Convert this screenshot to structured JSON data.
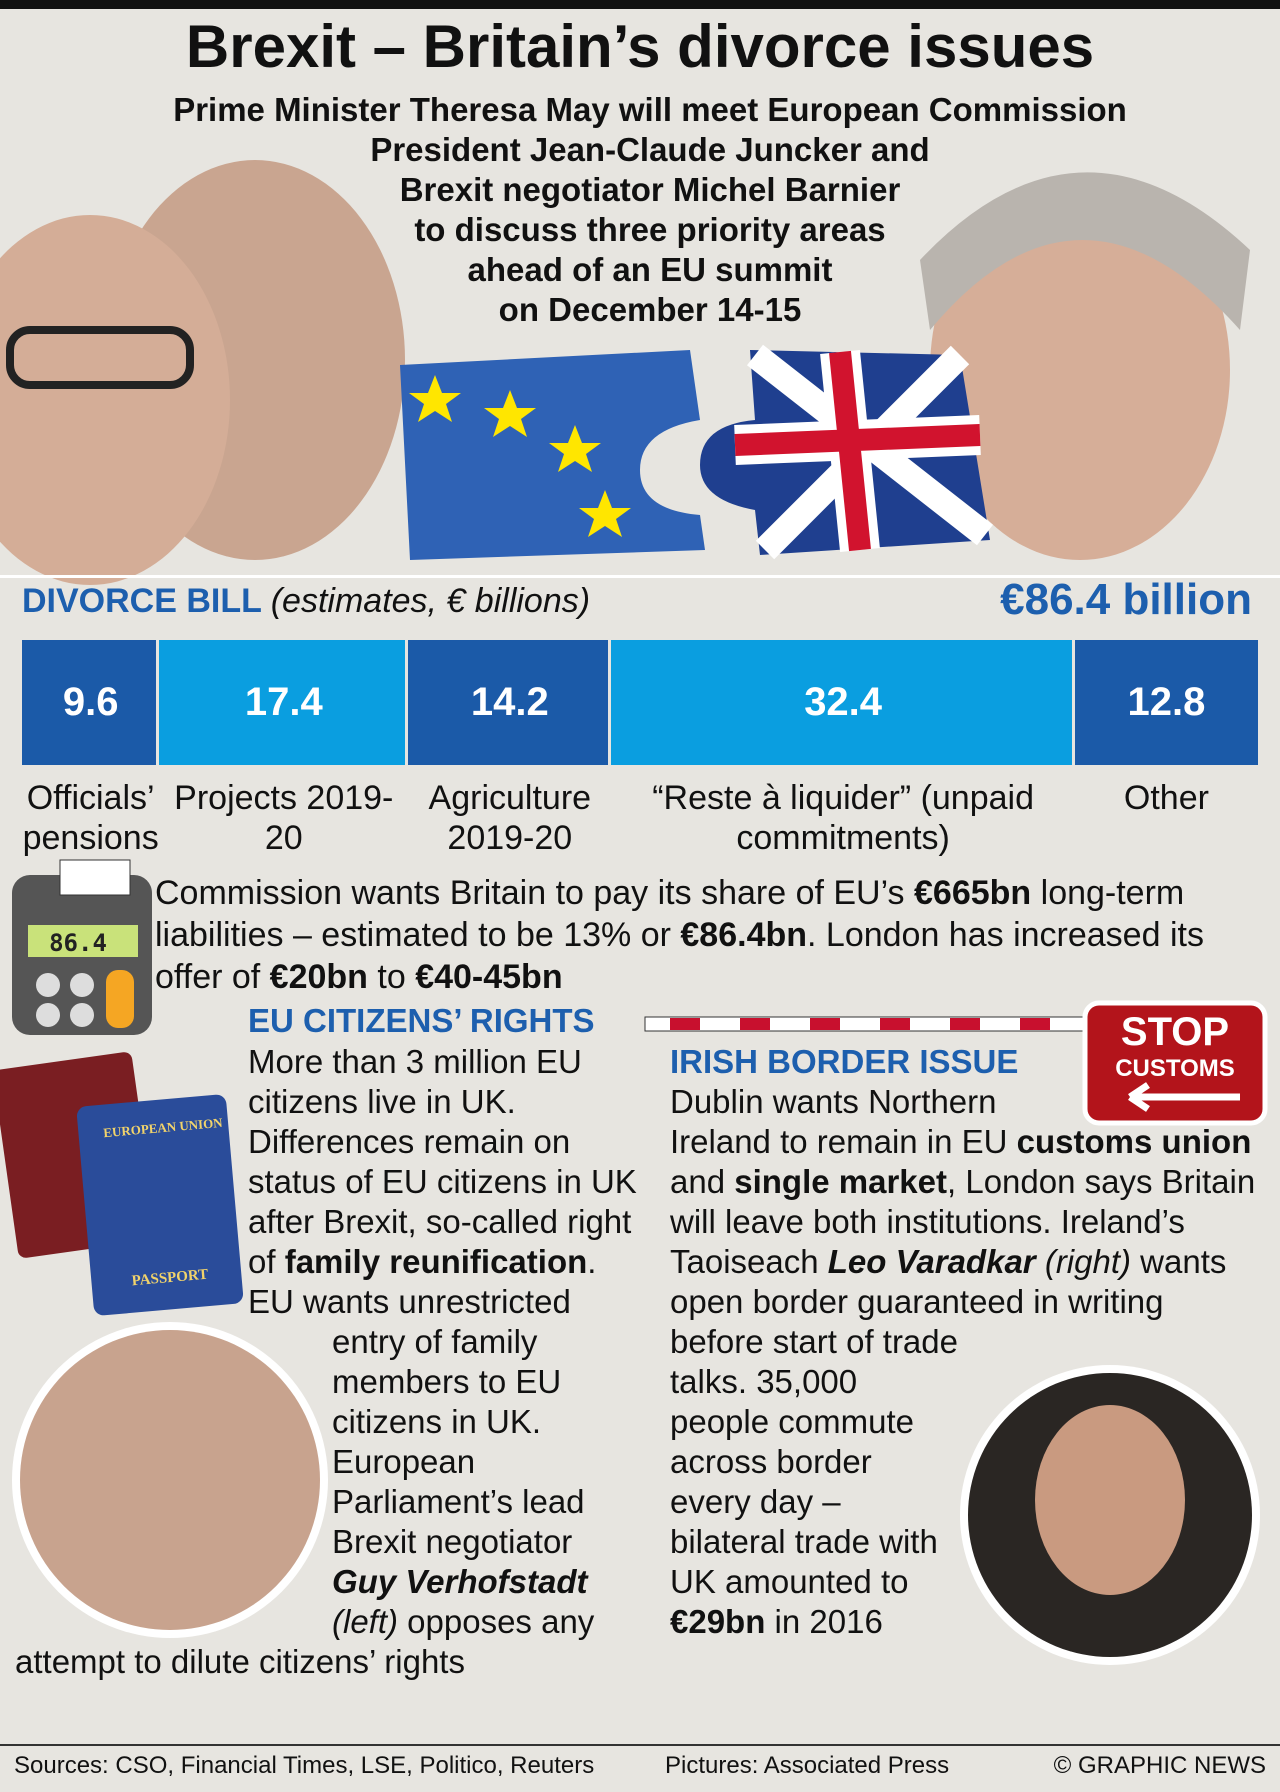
{
  "title": "Brexit – Britain’s divorce issues",
  "intro": [
    "Prime Minister Theresa May will meet European Commission",
    "President Jean-Claude Juncker and",
    "Brexit negotiator Michel Barnier",
    "to discuss three priority areas",
    "ahead of an EU summit",
    "on December 14-15"
  ],
  "chart_data": {
    "type": "stacked-bar",
    "title": "DIVORCE BILL",
    "subtitle": "(estimates, € billions)",
    "total_label": "€86.4 billion",
    "categories": [
      "Officials’ pensions",
      "Projects 2019-20",
      "Agriculture 2019-20",
      "“Reste à liquider” (unpaid commitments)",
      "Other"
    ],
    "values": [
      9.6,
      17.4,
      14.2,
      32.4,
      12.8
    ],
    "colors": [
      "#1b5aa8",
      "#0a9ee0",
      "#1b5aa8",
      "#0a9ee0",
      "#1b5aa8"
    ]
  },
  "calculator_display": "86.4",
  "liabilities": [
    {
      "text": "Commission wants Britain to pay its share of EU’s "
    },
    {
      "text": "€665bn",
      "bold": true
    },
    {
      "text": " long-term liabilities – estimated to be 13% or "
    },
    {
      "text": "€86.4bn",
      "bold": true
    },
    {
      "text": ". London has increased its offer of "
    },
    {
      "text": "€20bn",
      "bold": true
    },
    {
      "text": " to "
    },
    {
      "text": "€40-45bn",
      "bold": true
    }
  ],
  "passport": {
    "union": "EUROPEAN UNION",
    "label": "PASSPORT"
  },
  "citizens": {
    "heading": "EU CITIZENS’ RIGHTS",
    "runs": [
      {
        "text": "More than 3 million EU citizens live in UK. Differences remain on status of EU citizens in UK after Brexit, so-called right of "
      },
      {
        "text": "family reunification",
        "bold": true
      },
      {
        "text": ". EU wants unrestricted entry of family members to EU citizens in UK. European Parliament’s lead Brexit negotiator "
      },
      {
        "text": "Guy Verhofstadt",
        "bold": true,
        "italic": true
      },
      {
        "text": " "
      },
      {
        "text": "(left)",
        "italic": true
      },
      {
        "text": " opposes any attempt to dilute citizens’ rights"
      }
    ]
  },
  "stop_sign": {
    "stop": "STOP",
    "customs": "CUSTOMS"
  },
  "border": {
    "heading": "IRISH BORDER ISSUE",
    "runs": [
      {
        "text": "Dublin wants Northern Ireland to remain in EU "
      },
      {
        "text": "customs union",
        "bold": true
      },
      {
        "text": " and "
      },
      {
        "text": "single market",
        "bold": true
      },
      {
        "text": ", London says Britain will leave both institutions. Ireland’s Taoiseach "
      },
      {
        "text": "Leo Varadkar",
        "bold": true,
        "italic": true
      },
      {
        "text": " "
      },
      {
        "text": "(right)",
        "italic": true
      },
      {
        "text": " wants open border guaranteed in writing before start of trade talks. 35,000 people commute across border every day – bilateral trade with UK amounted to "
      },
      {
        "text": "€29bn",
        "bold": true
      },
      {
        "text": " in 2016"
      }
    ]
  },
  "footer": {
    "sources": "Sources: CSO, Financial Times, LSE, Politico, Reuters",
    "pictures": "Pictures: Associated Press",
    "credit": "© GRAPHIC NEWS"
  }
}
